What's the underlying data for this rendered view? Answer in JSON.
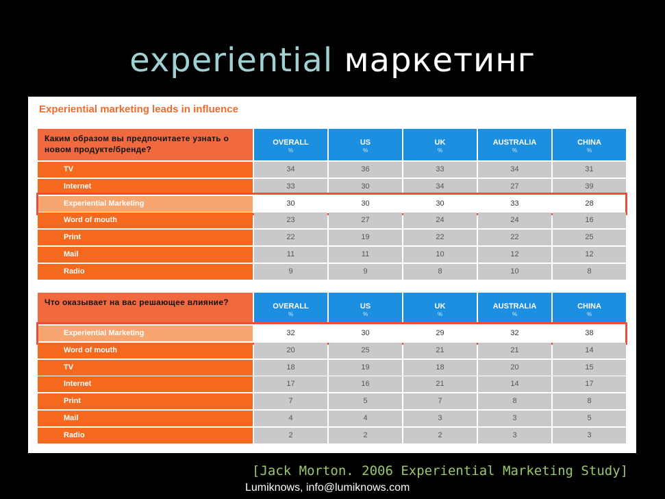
{
  "title": {
    "part1": "experiential",
    "part2": "маркетинг"
  },
  "chart_data": {
    "type": "table",
    "title": "Experiential marketing leads in influence",
    "columns": [
      {
        "name": "OVERALL",
        "unit": "%"
      },
      {
        "name": "US",
        "unit": "%"
      },
      {
        "name": "UK",
        "unit": "%"
      },
      {
        "name": "AUSTRALIA",
        "unit": "%"
      },
      {
        "name": "CHINA",
        "unit": "%"
      }
    ],
    "tables": [
      {
        "question": "Каким образом вы предпочитаете узнать о новом продукте/бренде?",
        "highlight_row": 2,
        "rows": [
          {
            "label": "TV",
            "values": [
              34,
              36,
              33,
              34,
              31
            ]
          },
          {
            "label": "Internet",
            "values": [
              33,
              30,
              34,
              27,
              39
            ]
          },
          {
            "label": "Experiential Marketing",
            "values": [
              30,
              30,
              30,
              33,
              28
            ]
          },
          {
            "label": "Word of mouth",
            "values": [
              23,
              27,
              24,
              24,
              16
            ]
          },
          {
            "label": "Print",
            "values": [
              22,
              19,
              22,
              22,
              25
            ]
          },
          {
            "label": "Mail",
            "values": [
              11,
              11,
              10,
              12,
              12
            ]
          },
          {
            "label": "Radio",
            "values": [
              9,
              9,
              8,
              10,
              8
            ]
          }
        ]
      },
      {
        "question": "Что оказывает на вас решающее влияние?",
        "highlight_row": 0,
        "rows": [
          {
            "label": "Experiential Marketing",
            "values": [
              32,
              30,
              29,
              32,
              38
            ]
          },
          {
            "label": "Word of mouth",
            "values": [
              20,
              25,
              21,
              21,
              14
            ]
          },
          {
            "label": "TV",
            "values": [
              18,
              19,
              18,
              20,
              15
            ]
          },
          {
            "label": "Internet",
            "values": [
              17,
              16,
              21,
              14,
              17
            ]
          },
          {
            "label": "Print",
            "values": [
              7,
              5,
              7,
              8,
              8
            ]
          },
          {
            "label": "Mail",
            "values": [
              4,
              4,
              3,
              3,
              5
            ]
          },
          {
            "label": "Radio",
            "values": [
              2,
              2,
              2,
              3,
              3
            ]
          }
        ]
      }
    ]
  },
  "source": "[Jack Morton. 2006 Experiential Marketing Study]",
  "contact": "Lumiknows, info@lumiknows.com",
  "colors": {
    "header_blue": "#1c8fe0",
    "label_orange": "#f5691f",
    "highlight_border": "#e85038",
    "title_accent": "#9fd0d2",
    "source_green": "#9bc86a"
  }
}
